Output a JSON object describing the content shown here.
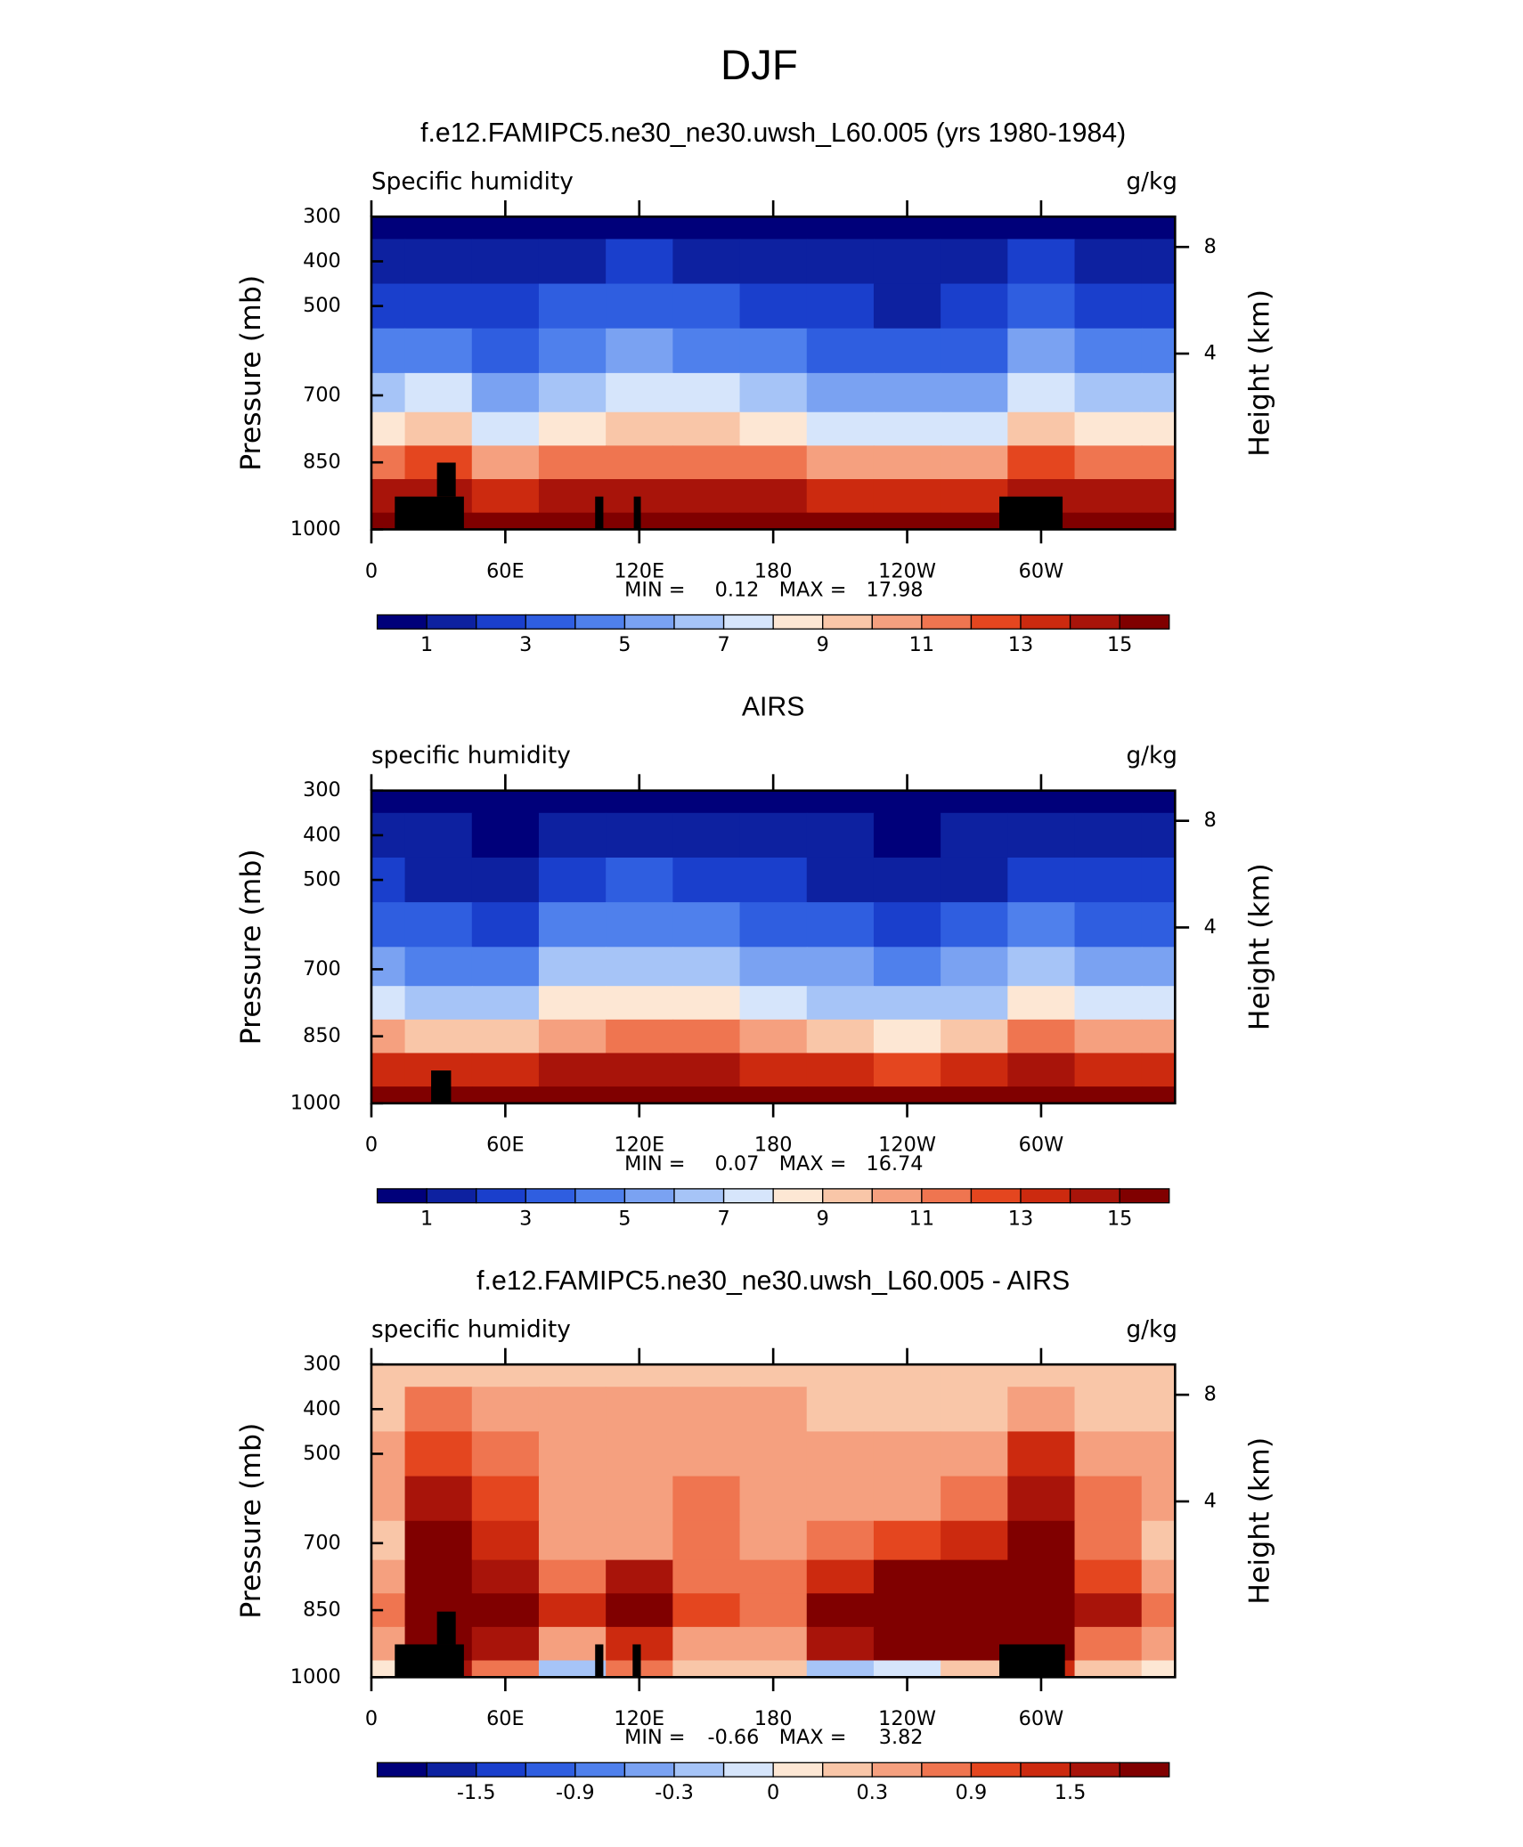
{
  "title": "DJF",
  "chart_data": [
    {
      "type": "contour",
      "title": "f.e12.FAMIPC5.ne30_ne30.uwsh_L60.005 (yrs 1980-1984)",
      "left_string": "Specific humidity",
      "right_string": "g/kg",
      "ylabel": "Pressure (mb)",
      "y2label": "Height (km)",
      "x": [
        0,
        30,
        60,
        90,
        120,
        150,
        180,
        210,
        240,
        270,
        300,
        330,
        360
      ],
      "y": [
        300,
        400,
        500,
        600,
        700,
        775,
        850,
        925,
        1000
      ],
      "z": [
        [
          0.6,
          0.7,
          0.6,
          0.7,
          0.8,
          0.8,
          0.7,
          0.5,
          0.4,
          0.5,
          0.8,
          0.6,
          0.6
        ],
        [
          1.3,
          1.6,
          1.2,
          1.8,
          2.0,
          1.9,
          1.6,
          1.2,
          1.0,
          1.2,
          2.0,
          1.4,
          1.3
        ],
        [
          2.4,
          2.9,
          2.2,
          3.0,
          3.3,
          3.2,
          2.8,
          2.2,
          1.8,
          2.2,
          3.4,
          2.6,
          2.4
        ],
        [
          4.0,
          4.8,
          3.6,
          4.6,
          5.0,
          4.9,
          4.3,
          3.6,
          3.0,
          3.6,
          5.2,
          4.2,
          4.0
        ],
        [
          6.2,
          7.5,
          5.6,
          6.8,
          7.4,
          7.2,
          6.4,
          5.6,
          5.0,
          5.8,
          7.8,
          6.5,
          6.2
        ],
        [
          8.2,
          9.5,
          7.8,
          8.6,
          9.2,
          9.0,
          8.3,
          7.6,
          7.0,
          7.8,
          9.8,
          8.6,
          8.2
        ],
        [
          11,
          12,
          10.8,
          11.2,
          11.6,
          11.5,
          11,
          10.5,
          10,
          10.6,
          12.2,
          11.2,
          11
        ],
        [
          14,
          14.5,
          13.8,
          14.2,
          14.5,
          14.4,
          14,
          13.6,
          13.4,
          13.8,
          14.8,
          14.2,
          14
        ],
        [
          15.8,
          16.5,
          15.5,
          16.2,
          16.8,
          16.5,
          16,
          15.5,
          15.3,
          15.6,
          16.8,
          16,
          15.8
        ]
      ],
      "xlim": [
        0,
        360
      ],
      "xticks": [
        0,
        {
          "value": 60,
          "label": "60E"
        },
        {
          "value": 120,
          "label": "120E"
        },
        180,
        {
          "value": 240,
          "label": "120W"
        },
        {
          "value": 300,
          "label": "60W"
        }
      ],
      "ylim": [
        1000,
        300
      ],
      "yticks": [
        300,
        400,
        500,
        700,
        850,
        1000
      ],
      "y2lim": [
        0,
        9.63
      ],
      "y2ticks": [
        8,
        4
      ],
      "levels": [
        1,
        2,
        3,
        4,
        5,
        6,
        7,
        8,
        9,
        10,
        11,
        12,
        13,
        14,
        15
      ],
      "colorbar_ticks": [
        1,
        3,
        5,
        7,
        9,
        11,
        13,
        15
      ],
      "colors": [
        "#00007a",
        "#0d21a0",
        "#1a3fcc",
        "#2f5ee0",
        "#4f80ec",
        "#7aa2f2",
        "#a6c4f7",
        "#d6e5fb",
        "#fde7d4",
        "#f9c6a8",
        "#f5a07f",
        "#ef7550",
        "#e4461f",
        "#cc2a0f",
        "#a8140a",
        "#800000"
      ],
      "min_label": "MIN =",
      "min": 0.12,
      "max_label": "MAX =",
      "max": 17.98
    },
    {
      "type": "contour",
      "title": "AIRS",
      "left_string": "specific humidity",
      "right_string": "g/kg",
      "ylabel": "Pressure (mb)",
      "y2label": "Height (km)",
      "x": [
        0,
        30,
        60,
        90,
        120,
        150,
        180,
        210,
        240,
        270,
        300,
        330,
        360
      ],
      "y": [
        300,
        400,
        500,
        600,
        700,
        775,
        850,
        925,
        1000
      ],
      "z": [
        [
          0.5,
          0.5,
          0.4,
          0.6,
          0.7,
          0.6,
          0.5,
          0.4,
          0.3,
          0.4,
          0.6,
          0.5,
          0.5
        ],
        [
          1.1,
          1.0,
          0.8,
          1.5,
          1.7,
          1.6,
          1.3,
          1.0,
          0.8,
          1.0,
          1.6,
          1.2,
          1.1
        ],
        [
          2.1,
          1.8,
          1.5,
          2.7,
          3.0,
          2.9,
          2.5,
          1.9,
          1.5,
          1.9,
          2.9,
          2.3,
          2.1
        ],
        [
          3.6,
          3.0,
          2.6,
          4.2,
          4.6,
          4.5,
          3.9,
          3.2,
          2.6,
          3.2,
          4.5,
          3.8,
          3.6
        ],
        [
          5.6,
          4.8,
          4.2,
          6.2,
          6.8,
          6.6,
          5.8,
          5.0,
          4.3,
          5.1,
          6.7,
          5.8,
          5.6
        ],
        [
          7.6,
          6.6,
          6.0,
          8.0,
          8.5,
          8.4,
          7.6,
          6.8,
          6.0,
          6.8,
          8.5,
          7.6,
          7.6
        ],
        [
          10.5,
          9.0,
          9.5,
          10.8,
          11.2,
          11.0,
          10.2,
          9.3,
          8.6,
          9.3,
          11,
          10.5,
          10.5
        ],
        [
          13.5,
          13,
          13.2,
          14,
          14.3,
          14.2,
          13.8,
          13.2,
          12.8,
          13.3,
          14.3,
          13.8,
          13.5
        ],
        [
          15.5,
          15.8,
          15.3,
          16,
          16.5,
          16.3,
          15.8,
          15.3,
          15,
          15.4,
          16.3,
          15.8,
          15.5
        ]
      ],
      "xlim": [
        0,
        360
      ],
      "xticks": [
        0,
        {
          "value": 60,
          "label": "60E"
        },
        {
          "value": 120,
          "label": "120E"
        },
        180,
        {
          "value": 240,
          "label": "120W"
        },
        {
          "value": 300,
          "label": "60W"
        }
      ],
      "ylim": [
        1000,
        300
      ],
      "yticks": [
        300,
        400,
        500,
        700,
        850,
        1000
      ],
      "y2lim": [
        0,
        9.63
      ],
      "y2ticks": [
        8,
        4
      ],
      "levels": [
        1,
        2,
        3,
        4,
        5,
        6,
        7,
        8,
        9,
        10,
        11,
        12,
        13,
        14,
        15
      ],
      "colorbar_ticks": [
        1,
        3,
        5,
        7,
        9,
        11,
        13,
        15
      ],
      "colors": [
        "#00007a",
        "#0d21a0",
        "#1a3fcc",
        "#2f5ee0",
        "#4f80ec",
        "#7aa2f2",
        "#a6c4f7",
        "#d6e5fb",
        "#fde7d4",
        "#f9c6a8",
        "#f5a07f",
        "#ef7550",
        "#e4461f",
        "#cc2a0f",
        "#a8140a",
        "#800000"
      ],
      "min_label": "MIN =",
      "min": 0.07,
      "max_label": "MAX =",
      "max": 16.74
    },
    {
      "type": "contour",
      "title": "f.e12.FAMIPC5.ne30_ne30.uwsh_L60.005 - AIRS",
      "left_string": "specific humidity",
      "right_string": "g/kg",
      "ylabel": "Pressure (mb)",
      "y2label": "Height (km)",
      "x": [
        0,
        30,
        60,
        90,
        120,
        150,
        180,
        210,
        240,
        270,
        300,
        330,
        360
      ],
      "y": [
        300,
        400,
        500,
        600,
        700,
        775,
        850,
        925,
        1000
      ],
      "z": [
        [
          0.1,
          0.2,
          0.2,
          0.1,
          0.1,
          0.2,
          0.2,
          0.1,
          0.1,
          0.1,
          0.2,
          0.1,
          0.1
        ],
        [
          0.2,
          0.6,
          0.4,
          0.3,
          0.3,
          0.4,
          0.3,
          0.2,
          0.2,
          0.2,
          0.5,
          0.2,
          0.2
        ],
        [
          0.3,
          1.0,
          0.7,
          0.4,
          0.4,
          0.5,
          0.3,
          0.3,
          0.4,
          0.5,
          1.2,
          0.5,
          0.3
        ],
        [
          0.4,
          1.6,
          1.0,
          0.5,
          0.5,
          0.6,
          0.4,
          0.4,
          0.5,
          0.8,
          1.6,
          0.7,
          0.4
        ],
        [
          0.2,
          2.0,
          1.2,
          0.4,
          0.5,
          0.6,
          0.4,
          0.6,
          0.9,
          1.3,
          2.0,
          0.7,
          0.2
        ],
        [
          0.5,
          2.2,
          1.5,
          0.8,
          1.6,
          0.8,
          0.6,
          1.4,
          1.8,
          1.9,
          2.2,
          1.0,
          0.5
        ],
        [
          0.6,
          2.5,
          2.0,
          1.2,
          2.0,
          1.0,
          0.8,
          2.2,
          2.6,
          2.6,
          2.4,
          1.5,
          0.8
        ],
        [
          0.3,
          2.2,
          1.6,
          0.5,
          1.4,
          0.4,
          0.5,
          1.6,
          1.8,
          2.0,
          2.0,
          0.8,
          0.3
        ],
        [
          0.0,
          1.5,
          0.8,
          -0.2,
          0.8,
          0.1,
          0.2,
          -0.3,
          -0.1,
          0.2,
          1.2,
          0.2,
          0.0
        ]
      ],
      "xlim": [
        0,
        360
      ],
      "xticks": [
        0,
        {
          "value": 60,
          "label": "60E"
        },
        {
          "value": 120,
          "label": "120E"
        },
        180,
        {
          "value": 240,
          "label": "120W"
        },
        {
          "value": 300,
          "label": "60W"
        }
      ],
      "ylim": [
        1000,
        300
      ],
      "yticks": [
        300,
        400,
        500,
        700,
        850,
        1000
      ],
      "y2lim": [
        0,
        9.63
      ],
      "y2ticks": [
        8,
        4
      ],
      "levels": [
        -1.8,
        -1.5,
        -1.2,
        -0.9,
        -0.6,
        -0.3,
        -0.1,
        0,
        0.1,
        0.3,
        0.6,
        0.9,
        1.2,
        1.5,
        1.8
      ],
      "colorbar_ticks": [
        -1.5,
        -0.9,
        -0.3,
        0,
        0.3,
        0.9,
        1.5
      ],
      "colors": [
        "#00007a",
        "#0d21a0",
        "#1a3fcc",
        "#2f5ee0",
        "#4f80ec",
        "#7aa2f2",
        "#a6c4f7",
        "#d6e5fb",
        "#fde7d4",
        "#f9c6a8",
        "#f5a07f",
        "#ef7550",
        "#e4461f",
        "#cc2a0f",
        "#a8140a",
        "#800000"
      ],
      "min_label": "MIN =",
      "min": -0.66,
      "max_label": "MAX =",
      "max": 3.82
    }
  ]
}
